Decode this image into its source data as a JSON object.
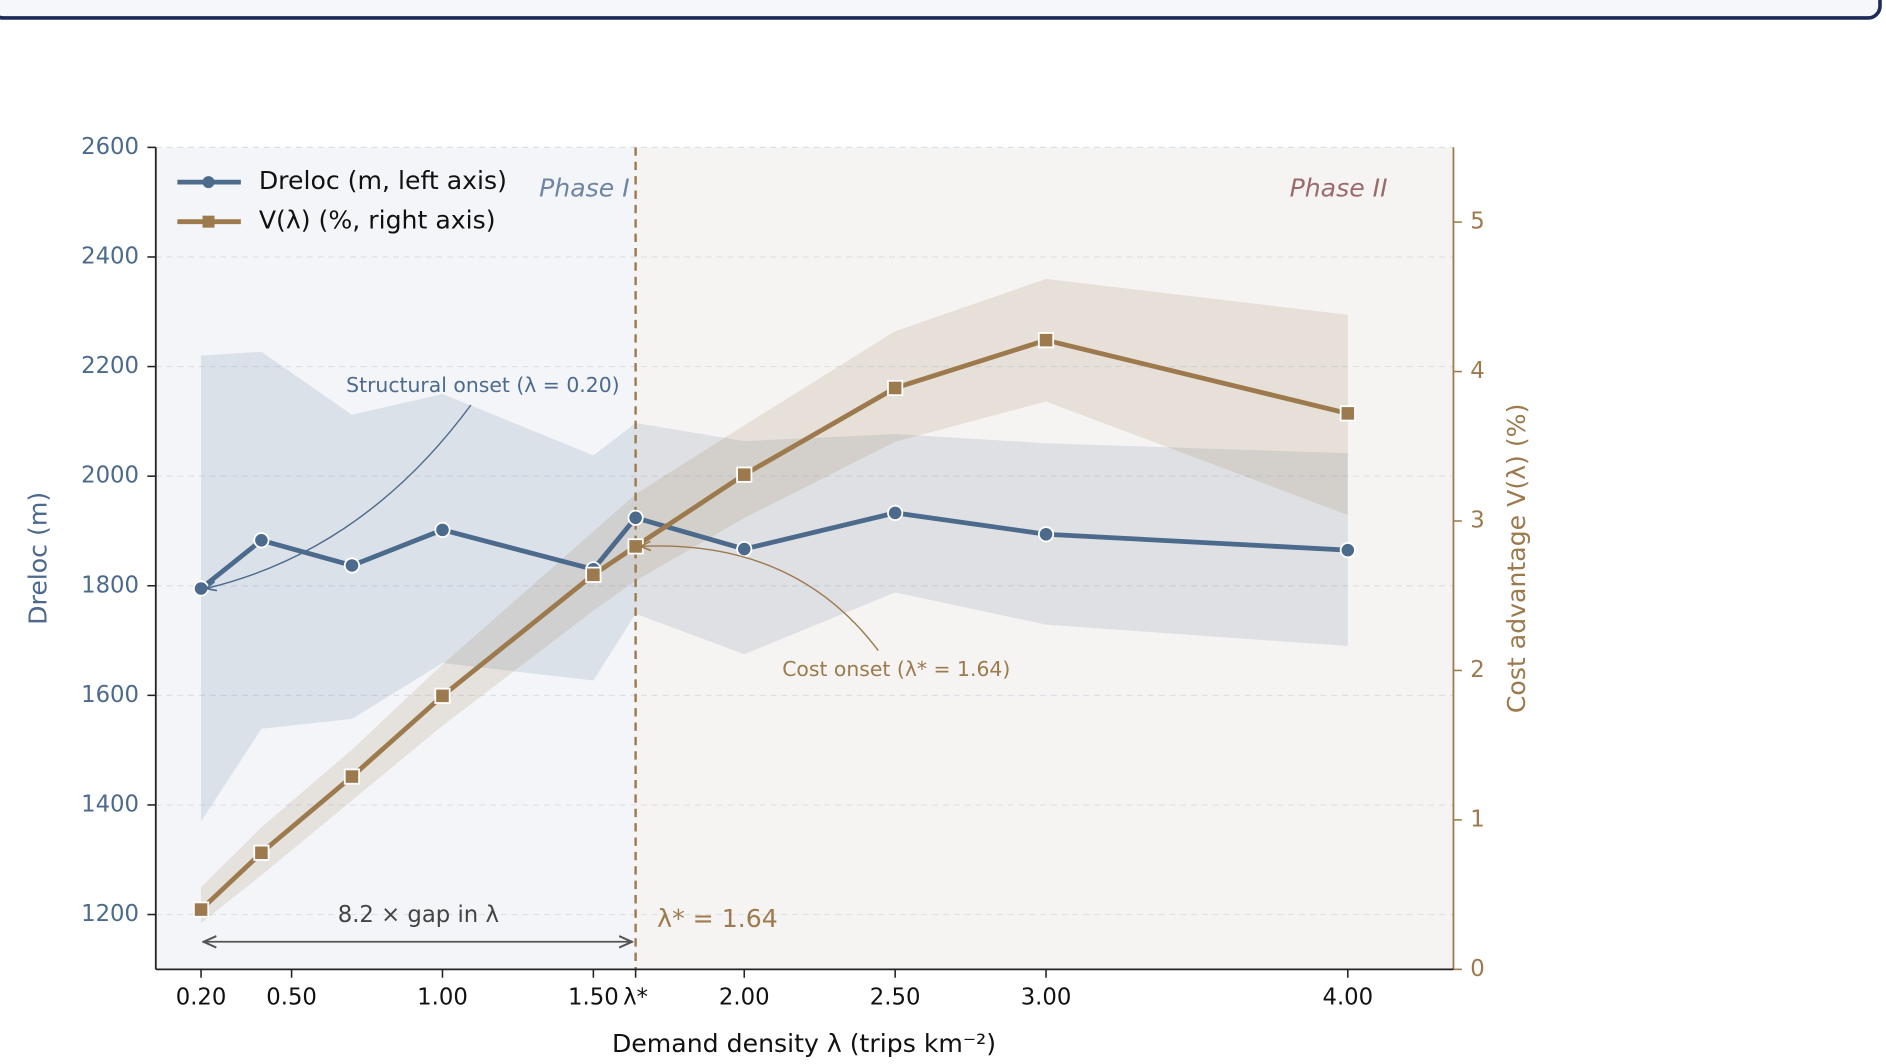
{
  "chart_data": {
    "type": "line",
    "x_label": "Demand density λ (trips km⁻²)",
    "y_label": "Dreloc (m)",
    "y2_label": "Cost advantage V(λ) (%)",
    "x": [
      0.2,
      0.4,
      0.7,
      1.0,
      1.5,
      1.64,
      2.0,
      2.5,
      3.0,
      4.0
    ],
    "xlim": [
      0.05,
      4.35
    ],
    "xticks": [
      {
        "value": 0.2,
        "label": "0.20"
      },
      {
        "value": 0.5,
        "label": "0.50"
      },
      {
        "value": 1.0,
        "label": "1.00"
      },
      {
        "value": 1.5,
        "label": "1.50"
      },
      {
        "value": 1.64,
        "label": "λ*"
      },
      {
        "value": 2.0,
        "label": "2.00"
      },
      {
        "value": 2.5,
        "label": "2.50"
      },
      {
        "value": 3.0,
        "label": "3.00"
      },
      {
        "value": 4.0,
        "label": "4.00"
      }
    ],
    "ylim": [
      1100,
      2600
    ],
    "yticks": [
      1200,
      1400,
      1600,
      1800,
      2000,
      2200,
      2400,
      2600
    ],
    "y2lim": [
      0,
      5.5
    ],
    "y2ticks": [
      0,
      1,
      2,
      3,
      4,
      5
    ],
    "grid": true,
    "legend": "upper left",
    "series": [
      {
        "name": "Dreloc  (m,  left axis)",
        "color": "#4c6a8c",
        "marker": "circle",
        "values": [
          1795,
          1883,
          1837,
          1902,
          1830,
          1924,
          1867,
          1933,
          1894,
          1865
        ],
        "band_upper": [
          2220,
          2227,
          2112,
          2150,
          2038,
          2097,
          2064,
          2077,
          2060,
          2042
        ],
        "band_lower": [
          1370,
          1539,
          1557,
          1659,
          1627,
          1749,
          1675,
          1788,
          1729,
          1690
        ]
      },
      {
        "name": "V(λ)  (%,  right axis)",
        "color": "#9c7a4e",
        "marker": "square",
        "axis": "y2",
        "values": [
          0.4,
          0.78,
          1.29,
          1.83,
          2.64,
          2.83,
          3.31,
          3.89,
          4.21,
          3.72
        ],
        "band_upper": [
          0.55,
          0.95,
          1.47,
          2.04,
          2.93,
          3.18,
          3.64,
          4.27,
          4.62,
          4.38
        ],
        "band_lower": [
          0.31,
          0.63,
          1.13,
          1.63,
          2.4,
          2.6,
          3.02,
          3.53,
          3.8,
          3.04
        ]
      }
    ],
    "annotations": {
      "phase_1": "Phase I",
      "phase_2": "Phase II",
      "structural_onset": "Structural onset (λ = 0.20)",
      "cost_onset": "Cost onset (λ* = 1.64)",
      "threshold": "λ* = 1.64",
      "gap": "8.2 ×  gap in λ"
    }
  }
}
